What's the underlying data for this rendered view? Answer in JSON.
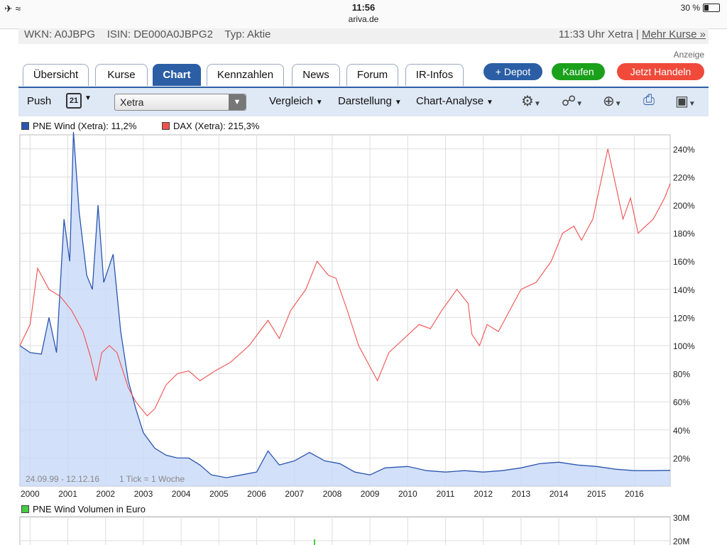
{
  "status": {
    "time": "11:56",
    "url": "ariva.de",
    "battery": "30 %"
  },
  "info": {
    "wkn": "WKN: A0JBPG",
    "isin": "ISIN: DE000A0JBPG2",
    "typ": "Typ: Aktie",
    "time": "11:33 Uhr Xetra |",
    "more": "Mehr Kurse »"
  },
  "ad_label": "Anzeige",
  "tabs": [
    "Übersicht",
    "Kurse",
    "Chart",
    "Kennzahlen",
    "News",
    "Forum",
    "IR-Infos"
  ],
  "actions": {
    "depot": "+ Depot",
    "buy": "Kaufen",
    "trade": "Jetzt Handeln"
  },
  "toolbar": {
    "push": "Push",
    "calendar": "21",
    "exchange": "Xetra",
    "compare": "Vergleich",
    "display": "Darstellung",
    "analysis": "Chart-Analyse"
  },
  "legend": {
    "pne": "PNE Wind (Xetra): 11,2%",
    "dax": "DAX (Xetra): 215,3%"
  },
  "colors": {
    "pne": "#2a56b0",
    "dax": "#f05050",
    "volume": "#44cc44",
    "accent": "#2b5ea5"
  },
  "chart_data": {
    "type": "line",
    "x_ticks": [
      "2000",
      "2001",
      "2002",
      "2003",
      "2004",
      "2005",
      "2006",
      "2007",
      "2008",
      "2009",
      "2010",
      "2011",
      "2012",
      "2013",
      "2014",
      "2015",
      "2016"
    ],
    "y_ticks": [
      "20%",
      "40%",
      "60%",
      "80%",
      "100%",
      "120%",
      "140%",
      "160%",
      "180%",
      "200%",
      "220%",
      "240%"
    ],
    "ylim": [
      0,
      250
    ],
    "range_label": "24.09.99 - 12.12.16",
    "tick_label": "1 Tick = 1 Woche",
    "series": [
      {
        "name": "PNE Wind (Xetra)",
        "points": [
          [
            1999.73,
            100
          ],
          [
            2000.0,
            95
          ],
          [
            2000.3,
            94
          ],
          [
            2000.5,
            120
          ],
          [
            2000.7,
            95
          ],
          [
            2000.9,
            190
          ],
          [
            2001.05,
            160
          ],
          [
            2001.15,
            252
          ],
          [
            2001.3,
            195
          ],
          [
            2001.5,
            150
          ],
          [
            2001.65,
            140
          ],
          [
            2001.8,
            200
          ],
          [
            2001.95,
            145
          ],
          [
            2002.2,
            165
          ],
          [
            2002.4,
            110
          ],
          [
            2002.6,
            75
          ],
          [
            2002.8,
            55
          ],
          [
            2003.0,
            38
          ],
          [
            2003.3,
            27
          ],
          [
            2003.6,
            22
          ],
          [
            2003.9,
            20
          ],
          [
            2004.2,
            20
          ],
          [
            2004.5,
            15
          ],
          [
            2004.8,
            8
          ],
          [
            2005.2,
            6
          ],
          [
            2005.6,
            8
          ],
          [
            2006.0,
            10
          ],
          [
            2006.3,
            25
          ],
          [
            2006.6,
            15
          ],
          [
            2007.0,
            18
          ],
          [
            2007.4,
            24
          ],
          [
            2007.8,
            18
          ],
          [
            2008.2,
            16
          ],
          [
            2008.6,
            10
          ],
          [
            2009.0,
            8
          ],
          [
            2009.4,
            13
          ],
          [
            2010.0,
            14
          ],
          [
            2010.5,
            11
          ],
          [
            2011.0,
            10
          ],
          [
            2011.5,
            11
          ],
          [
            2012.0,
            10
          ],
          [
            2012.5,
            11
          ],
          [
            2013.0,
            13
          ],
          [
            2013.5,
            16
          ],
          [
            2014.0,
            17
          ],
          [
            2014.5,
            15
          ],
          [
            2015.0,
            14
          ],
          [
            2015.5,
            12
          ],
          [
            2016.0,
            11
          ],
          [
            2016.5,
            11
          ],
          [
            2016.95,
            11.2
          ]
        ]
      },
      {
        "name": "DAX (Xetra)",
        "points": [
          [
            1999.73,
            100
          ],
          [
            2000.0,
            115
          ],
          [
            2000.2,
            155
          ],
          [
            2000.5,
            140
          ],
          [
            2000.8,
            135
          ],
          [
            2001.1,
            125
          ],
          [
            2001.4,
            110
          ],
          [
            2001.6,
            92
          ],
          [
            2001.75,
            75
          ],
          [
            2001.9,
            95
          ],
          [
            2002.1,
            100
          ],
          [
            2002.3,
            95
          ],
          [
            2002.6,
            70
          ],
          [
            2002.8,
            60
          ],
          [
            2003.1,
            50
          ],
          [
            2003.3,
            55
          ],
          [
            2003.6,
            72
          ],
          [
            2003.9,
            80
          ],
          [
            2004.2,
            82
          ],
          [
            2004.5,
            75
          ],
          [
            2004.9,
            82
          ],
          [
            2005.3,
            88
          ],
          [
            2005.8,
            100
          ],
          [
            2006.3,
            118
          ],
          [
            2006.6,
            105
          ],
          [
            2006.9,
            125
          ],
          [
            2007.3,
            140
          ],
          [
            2007.6,
            160
          ],
          [
            2007.9,
            150
          ],
          [
            2008.1,
            148
          ],
          [
            2008.4,
            125
          ],
          [
            2008.7,
            100
          ],
          [
            2009.0,
            85
          ],
          [
            2009.2,
            75
          ],
          [
            2009.5,
            95
          ],
          [
            2009.9,
            105
          ],
          [
            2010.3,
            115
          ],
          [
            2010.6,
            112
          ],
          [
            2010.9,
            125
          ],
          [
            2011.3,
            140
          ],
          [
            2011.6,
            130
          ],
          [
            2011.7,
            108
          ],
          [
            2011.9,
            100
          ],
          [
            2012.1,
            115
          ],
          [
            2012.4,
            110
          ],
          [
            2012.7,
            125
          ],
          [
            2013.0,
            140
          ],
          [
            2013.4,
            145
          ],
          [
            2013.8,
            160
          ],
          [
            2014.1,
            180
          ],
          [
            2014.4,
            185
          ],
          [
            2014.6,
            175
          ],
          [
            2014.9,
            190
          ],
          [
            2015.1,
            215
          ],
          [
            2015.3,
            240
          ],
          [
            2015.5,
            215
          ],
          [
            2015.7,
            190
          ],
          [
            2015.9,
            205
          ],
          [
            2016.1,
            180
          ],
          [
            2016.3,
            185
          ],
          [
            2016.5,
            190
          ],
          [
            2016.8,
            205
          ],
          [
            2016.95,
            215.3
          ]
        ]
      }
    ]
  },
  "volume": {
    "label": "PNE Wind Volumen in Euro",
    "y_ticks": [
      "30M",
      "20M"
    ]
  }
}
